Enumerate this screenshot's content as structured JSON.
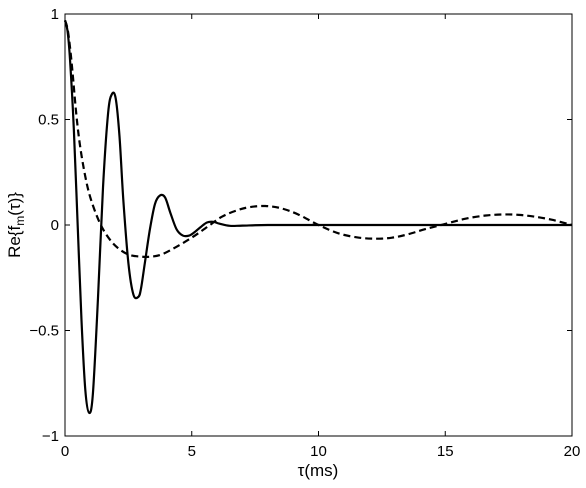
{
  "chart_data": {
    "type": "line",
    "title": "",
    "xlabel": "τ(ms)",
    "ylabel_main": "Re{f",
    "ylabel_sub": "m",
    "ylabel_tail": "(τ)}",
    "xlim": [
      0,
      20
    ],
    "ylim": [
      -1,
      1
    ],
    "xticks": [
      0,
      5,
      10,
      15,
      20
    ],
    "yticks": [
      -1,
      -0.5,
      0,
      0.5,
      1
    ],
    "xtick_labels": [
      "0",
      "5",
      "10",
      "15",
      "20"
    ],
    "ytick_labels": [
      "−1",
      "−0.5",
      "0",
      "0.5",
      "1"
    ],
    "grid": false,
    "legend": "none",
    "series": [
      {
        "style": "solid",
        "color": "#000000",
        "x": [
          0,
          0.1,
          0.2,
          0.35,
          0.5,
          0.65,
          0.8,
          0.95,
          1.1,
          1.3,
          1.5,
          1.7,
          1.85,
          2.0,
          2.15,
          2.3,
          2.5,
          2.7,
          2.9,
          3.0,
          3.15,
          3.35,
          3.55,
          3.75,
          3.95,
          4.15,
          4.4,
          4.65,
          4.9,
          5.1,
          5.35,
          5.6,
          5.85,
          6.1,
          6.5,
          7.0,
          8.0,
          10.0,
          14.0,
          20.0
        ],
        "y": [
          0.97,
          0.92,
          0.78,
          0.45,
          0.0,
          -0.45,
          -0.78,
          -0.89,
          -0.8,
          -0.35,
          0.18,
          0.53,
          0.62,
          0.6,
          0.42,
          0.12,
          -0.18,
          -0.33,
          -0.34,
          -0.3,
          -0.18,
          -0.02,
          0.1,
          0.14,
          0.13,
          0.06,
          -0.02,
          -0.05,
          -0.05,
          -0.035,
          -0.01,
          0.012,
          0.015,
          0.006,
          -0.004,
          -0.003,
          0.0,
          0.0,
          0.0,
          0.0
        ]
      },
      {
        "style": "dashed",
        "color": "#000000",
        "x": [
          0,
          0.1,
          0.2,
          0.3,
          0.45,
          0.6,
          0.8,
          1.0,
          1.3,
          1.6,
          2.0,
          2.5,
          3.0,
          3.4,
          3.8,
          4.3,
          5.0,
          5.6,
          6.2,
          6.8,
          7.3,
          7.9,
          8.5,
          9.2,
          10.0,
          10.8,
          11.6,
          12.3,
          12.9,
          13.5,
          14.2,
          15.0,
          15.8,
          16.6,
          17.3,
          17.9,
          18.5,
          19.2,
          20.0
        ],
        "y": [
          0.97,
          0.93,
          0.84,
          0.72,
          0.52,
          0.37,
          0.23,
          0.13,
          0.03,
          -0.04,
          -0.1,
          -0.14,
          -0.15,
          -0.15,
          -0.14,
          -0.11,
          -0.06,
          -0.01,
          0.04,
          0.07,
          0.085,
          0.09,
          0.08,
          0.05,
          0.0,
          -0.04,
          -0.06,
          -0.065,
          -0.06,
          -0.045,
          -0.02,
          0.005,
          0.03,
          0.045,
          0.05,
          0.048,
          0.04,
          0.025,
          0.0
        ]
      }
    ]
  }
}
